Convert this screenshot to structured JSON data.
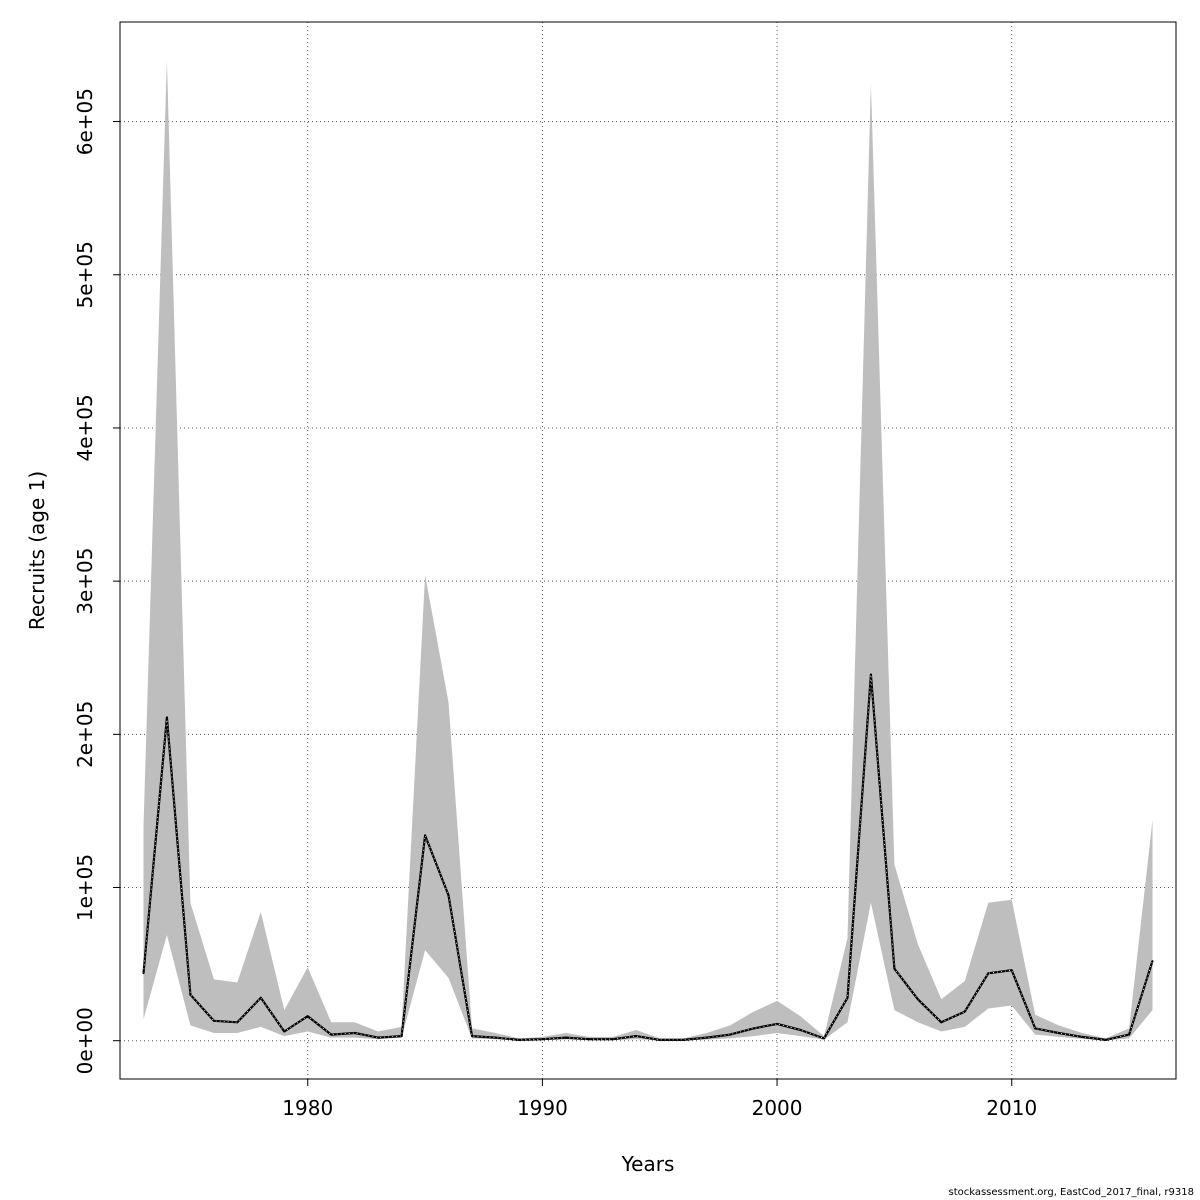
{
  "chart_data": {
    "type": "area",
    "xlabel": "Years",
    "ylabel": "Recruits (age 1)",
    "xlim": [
      1972,
      2017
    ],
    "ylim": [
      -25000,
      665000
    ],
    "grid": true,
    "x_ticks": [
      1980,
      1990,
      2000,
      2010
    ],
    "x_tick_labels": [
      "1980",
      "1990",
      "2000",
      "2010"
    ],
    "y_ticks": [
      0,
      100000,
      200000,
      300000,
      400000,
      500000,
      600000
    ],
    "y_tick_labels": [
      "0e+00",
      "1e+05",
      "2e+05",
      "3e+05",
      "4e+05",
      "5e+05",
      "6e+05"
    ],
    "colors": {
      "band": "#bebebe",
      "line": "#000000",
      "grid": "#555555"
    },
    "x": [
      1973,
      1974,
      1975,
      1976,
      1977,
      1978,
      1979,
      1980,
      1981,
      1982,
      1983,
      1984,
      1985,
      1986,
      1987,
      1988,
      1989,
      1990,
      1991,
      1992,
      1993,
      1994,
      1995,
      1996,
      1997,
      1998,
      1999,
      2000,
      2001,
      2002,
      2003,
      2004,
      2005,
      2006,
      2007,
      2008,
      2009,
      2010,
      2011,
      2012,
      2013,
      2014,
      2015,
      2016
    ],
    "series": [
      {
        "values": [
          44000,
          211000,
          30000,
          13000,
          12000,
          28000,
          6000,
          16000,
          4000,
          5000,
          2000,
          3000,
          134000,
          95000,
          3000,
          2000,
          500,
          1000,
          2000,
          1000,
          1000,
          3000,
          500,
          500,
          2000,
          4000,
          8000,
          11000,
          7000,
          1500,
          28000,
          239000,
          47000,
          27000,
          12000,
          19000,
          44000,
          46000,
          8000,
          5000,
          2500,
          500,
          4000,
          52000
        ],
        "lower": [
          14000,
          69000,
          10000,
          5000,
          5000,
          9000,
          3000,
          6000,
          2000,
          2000,
          1000,
          2000,
          59000,
          41000,
          1500,
          1000,
          200,
          400,
          800,
          300,
          300,
          1000,
          100,
          200,
          700,
          1500,
          3000,
          5000,
          3000,
          600,
          12000,
          90000,
          20000,
          12000,
          6000,
          9000,
          21000,
          23000,
          4000,
          2500,
          1200,
          200,
          1500,
          20000
        ],
        "upper": [
          140000,
          640000,
          90000,
          40000,
          38000,
          84000,
          20000,
          48000,
          12000,
          12000,
          6000,
          9000,
          304000,
          221000,
          8000,
          5000,
          1500,
          2500,
          5000,
          2500,
          2500,
          7000,
          1500,
          1500,
          5000,
          10000,
          19000,
          26000,
          16000,
          3000,
          67000,
          625000,
          115000,
          63000,
          27000,
          39000,
          90000,
          92000,
          17000,
          10000,
          5000,
          1500,
          8000,
          144000
        ]
      }
    ]
  },
  "footer": "stockassessment.org, EastCod_2017_final, r9318"
}
